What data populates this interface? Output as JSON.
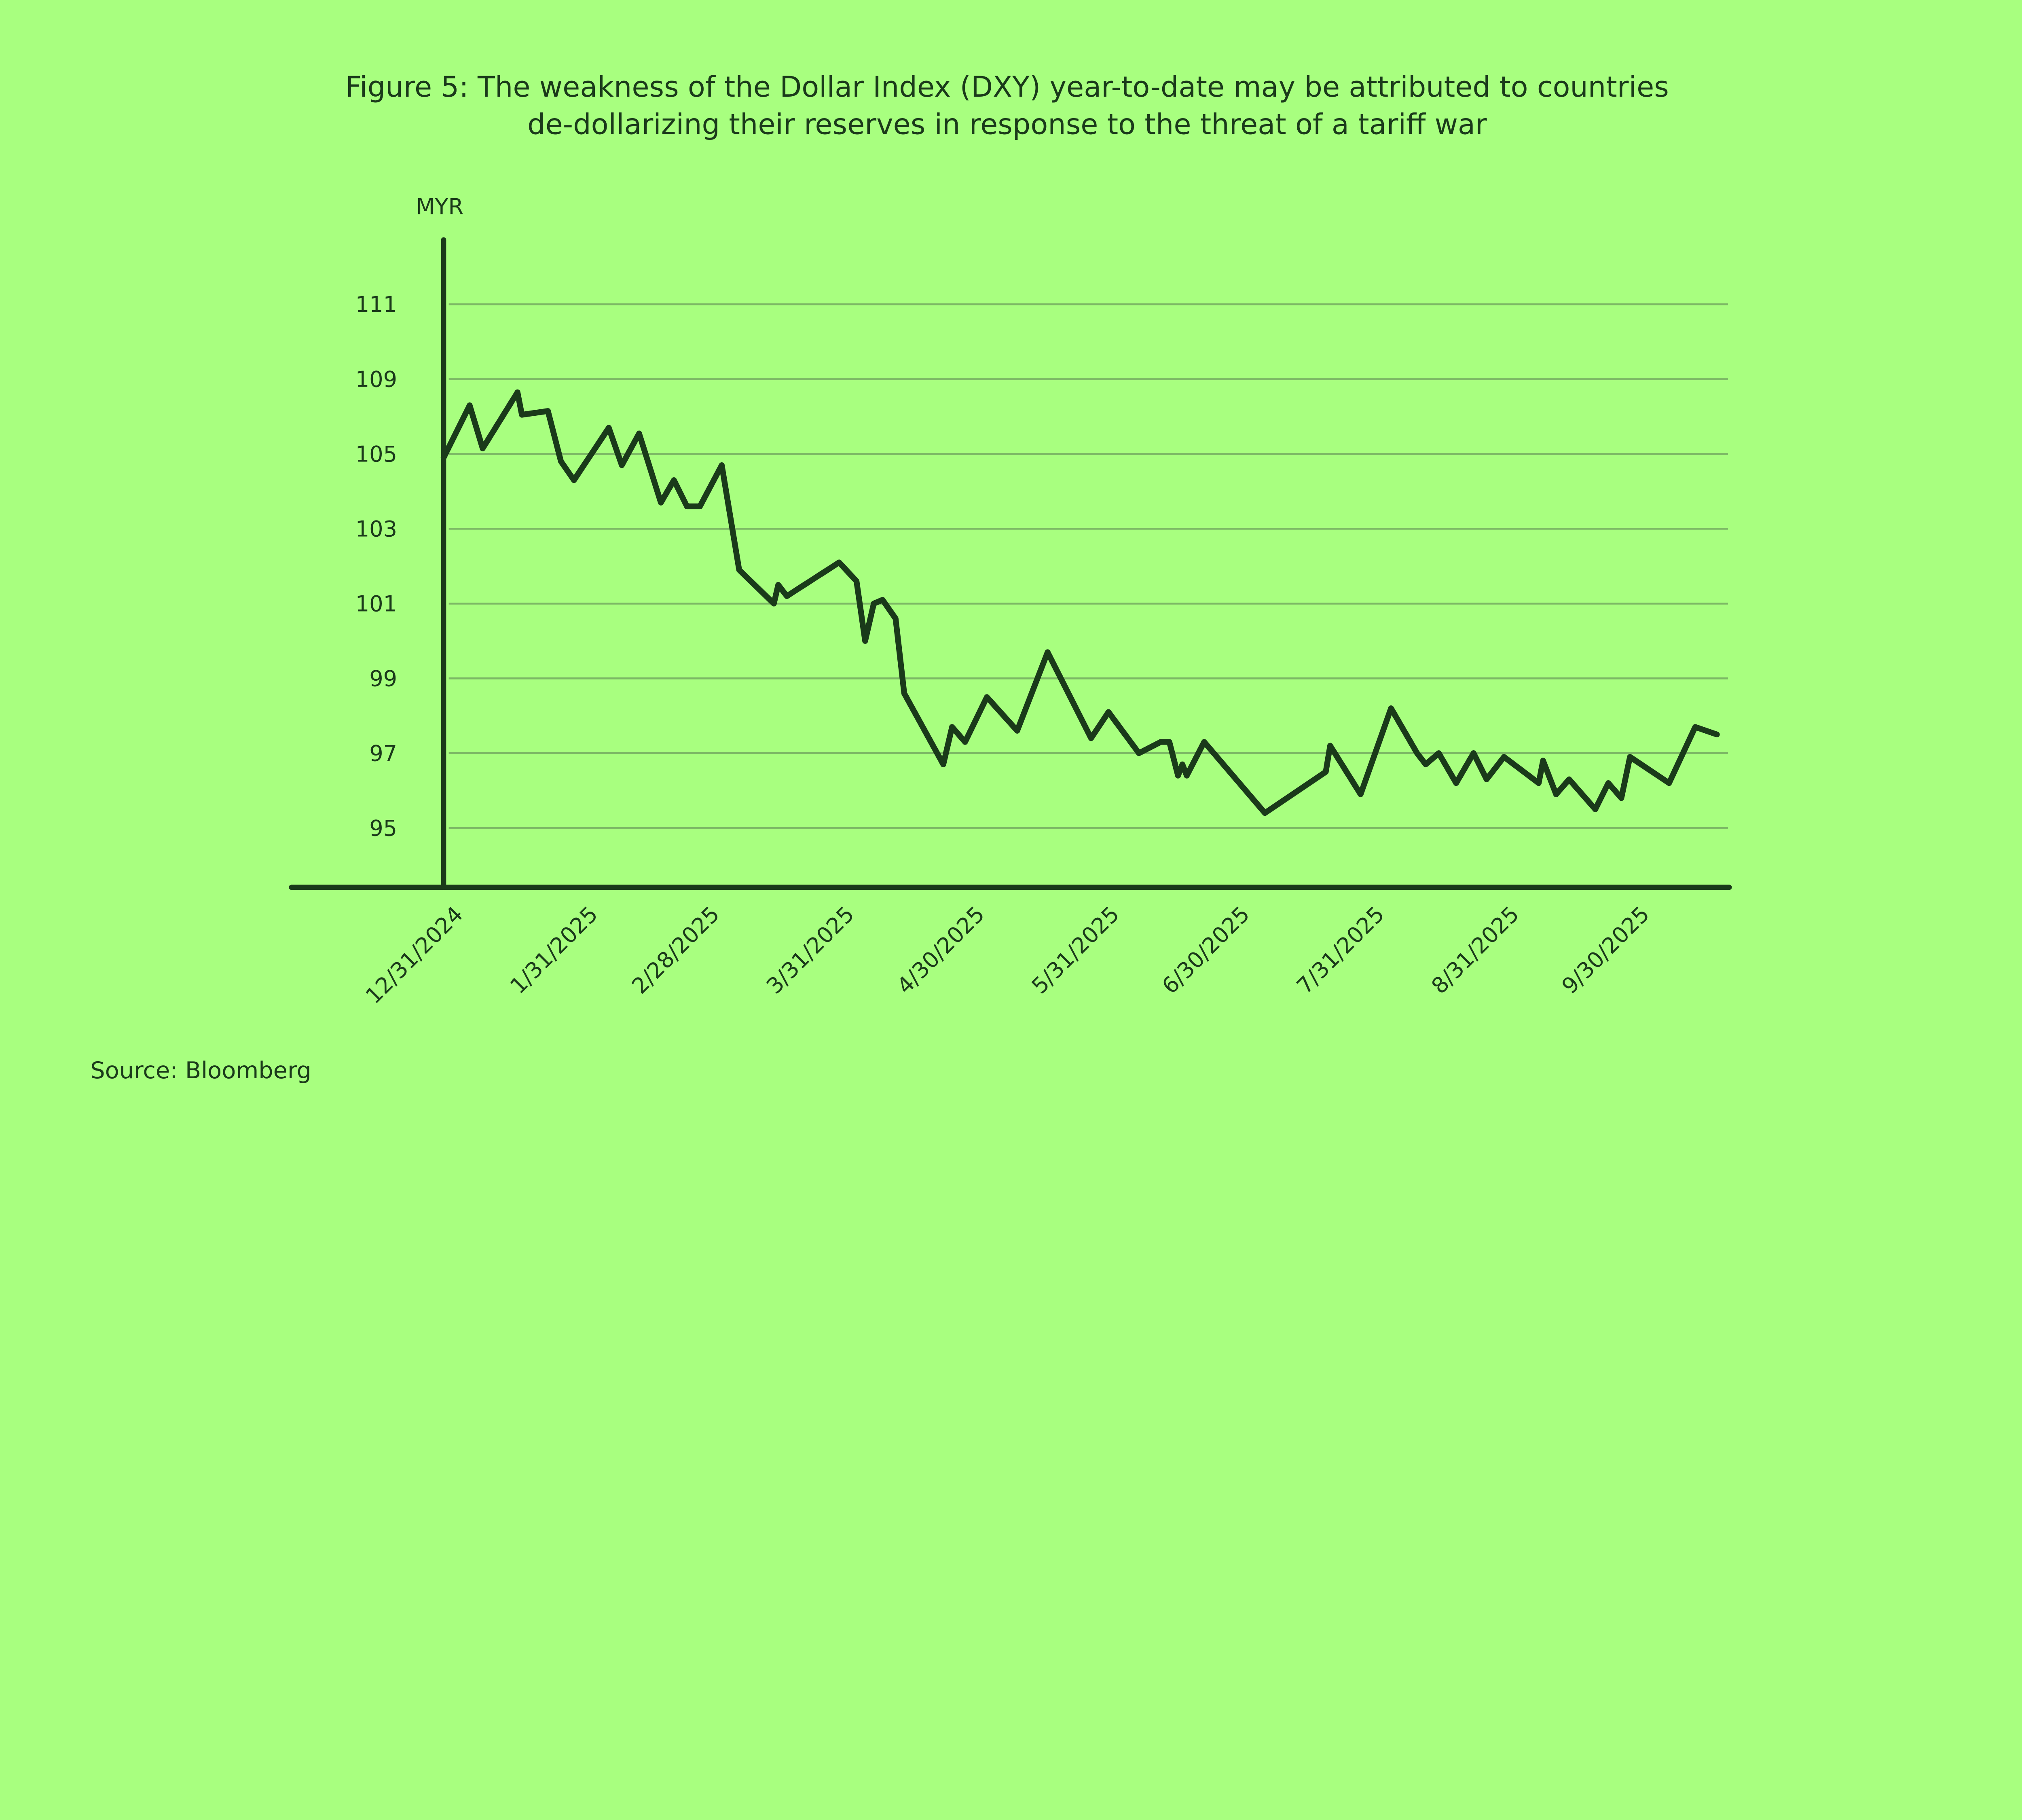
{
  "colors": {
    "background": "#a8ff7f",
    "line": "#1a3a1a",
    "grid": "#7cb865"
  },
  "chart_data": {
    "type": "line",
    "title_lines": [
      "Figure 5: The weakness of the Dollar Index (DXY) year-to-date may be attributed to countries",
      "de-dollarizing their reserves in response to the threat of a tariff war"
    ],
    "ylabel": "MYR",
    "xlabel": "",
    "source": "Source: Bloomberg",
    "grid": "horizontal",
    "y_ticks": [
      95,
      97,
      99,
      101,
      103,
      105,
      109,
      111
    ],
    "x_ticks": [
      "12/31/2024",
      "1/31/2025",
      "2/28/2025",
      "3/31/2025",
      "4/30/2025",
      "5/31/2025",
      "6/30/2025",
      "7/31/2025",
      "8/31/2025",
      "9/30/2025"
    ],
    "series": [
      {
        "points": [
          [
            "2024-12-31",
            104.9
          ],
          [
            "2025-01-06",
            107.6
          ],
          [
            "2025-01-09",
            105.3
          ],
          [
            "2025-01-17",
            108.3
          ],
          [
            "2025-01-18",
            107.1
          ],
          [
            "2025-01-24",
            107.3
          ],
          [
            "2025-01-27",
            104.8
          ],
          [
            "2025-01-30",
            104.3
          ],
          [
            "2025-02-07",
            106.4
          ],
          [
            "2025-02-10",
            104.7
          ],
          [
            "2025-02-14",
            106.1
          ],
          [
            "2025-02-19",
            103.7
          ],
          [
            "2025-02-22",
            104.3
          ],
          [
            "2025-02-25",
            103.6
          ],
          [
            "2025-02-28",
            103.6
          ],
          [
            "2025-03-05",
            104.7
          ],
          [
            "2025-03-09",
            101.9
          ],
          [
            "2025-03-17",
            101.0
          ],
          [
            "2025-03-18",
            101.5
          ],
          [
            "2025-03-20",
            101.2
          ],
          [
            "2025-04-01",
            102.1
          ],
          [
            "2025-04-05",
            101.6
          ],
          [
            "2025-04-07",
            100.0
          ],
          [
            "2025-04-09",
            101.0
          ],
          [
            "2025-04-11",
            101.1
          ],
          [
            "2025-04-14",
            100.6
          ],
          [
            "2025-04-16",
            98.6
          ],
          [
            "2025-04-25",
            96.7
          ],
          [
            "2025-04-27",
            97.7
          ],
          [
            "2025-04-30",
            97.3
          ],
          [
            "2025-05-05",
            98.5
          ],
          [
            "2025-05-12",
            97.6
          ],
          [
            "2025-05-19",
            99.7
          ],
          [
            "2025-05-29",
            97.4
          ],
          [
            "2025-06-02",
            98.1
          ],
          [
            "2025-06-09",
            97.0
          ],
          [
            "2025-06-14",
            97.3
          ],
          [
            "2025-06-16",
            97.3
          ],
          [
            "2025-06-18",
            96.4
          ],
          [
            "2025-06-19",
            96.7
          ],
          [
            "2025-06-20",
            96.4
          ],
          [
            "2025-06-24",
            97.3
          ],
          [
            "2025-07-08",
            95.4
          ],
          [
            "2025-07-22",
            96.5
          ],
          [
            "2025-07-23",
            97.2
          ],
          [
            "2025-07-30",
            95.9
          ],
          [
            "2025-08-06",
            98.2
          ],
          [
            "2025-08-12",
            97.0
          ],
          [
            "2025-08-14",
            96.7
          ],
          [
            "2025-08-17",
            97.0
          ],
          [
            "2025-08-21",
            96.2
          ],
          [
            "2025-08-25",
            97.0
          ],
          [
            "2025-08-28",
            96.3
          ],
          [
            "2025-09-01",
            96.9
          ],
          [
            "2025-09-09",
            96.2
          ],
          [
            "2025-09-10",
            96.8
          ],
          [
            "2025-09-13",
            95.9
          ],
          [
            "2025-09-16",
            96.3
          ],
          [
            "2025-09-22",
            95.5
          ],
          [
            "2025-09-25",
            96.2
          ],
          [
            "2025-09-28",
            95.8
          ],
          [
            "2025-09-30",
            96.9
          ],
          [
            "2025-10-09",
            96.2
          ],
          [
            "2025-10-15",
            97.7
          ],
          [
            "2025-10-20",
            97.5
          ]
        ]
      }
    ]
  }
}
